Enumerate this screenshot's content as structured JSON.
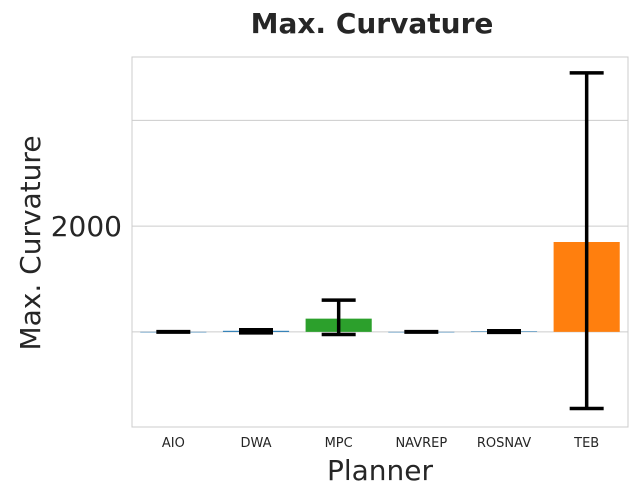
{
  "chart_data": {
    "type": "bar",
    "title": "Max. Curvature",
    "xlabel": "Planner",
    "ylabel": "Max. Curvature",
    "categories": [
      "AIO",
      "DWA",
      "MPC",
      "NAVREP",
      "ROSNAV",
      "TEB"
    ],
    "values": [
      0,
      20,
      250,
      0,
      10,
      1700
    ],
    "error": [
      [
        0,
        0
      ],
      [
        -20,
        40
      ],
      [
        -50,
        600
      ],
      [
        0,
        0
      ],
      [
        -10,
        20
      ],
      [
        -1450,
        4900
      ]
    ],
    "colors": [
      "#1f77b4",
      "#1f77b4",
      "#2ca02c",
      "#1f77b4",
      "#1f77b4",
      "#ff7f0e"
    ],
    "ytick_values": [
      2000
    ],
    "ytick_labels": [
      "2000"
    ],
    "ylim": [
      -1800,
      5200
    ],
    "grid": true,
    "grid_y_values": [
      0,
      2000,
      4000
    ]
  }
}
